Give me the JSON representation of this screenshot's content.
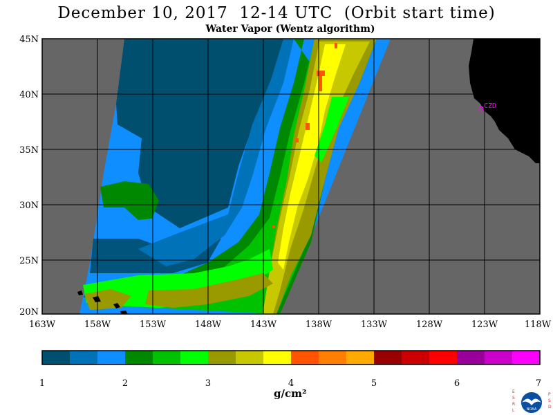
{
  "title": "December 10, 2017  12-14 UTC  (Orbit start time)",
  "subtitle": "Water Vapor (Wentz algorithm)",
  "map": {
    "lat_range": [
      20,
      45
    ],
    "lon_range": [
      -163,
      -118
    ],
    "lat_ticks": [
      "45N",
      "40N",
      "35N",
      "30N",
      "25N",
      "20N"
    ],
    "lon_ticks": [
      "163W",
      "158W",
      "153W",
      "148W",
      "143W",
      "138W",
      "133W",
      "128W",
      "123W",
      "118W"
    ],
    "station_label": "CZD",
    "colors": {
      "nodata": "#666666",
      "land": "#000000",
      "station": "#ff00ff"
    }
  },
  "colorbar": {
    "ticks": [
      "1",
      "2",
      "3",
      "4",
      "5",
      "6",
      "7"
    ],
    "unit": "g/cm²",
    "colors": [
      "#004f6f",
      "#0072b8",
      "#0f8eff",
      "#008800",
      "#00c200",
      "#00ff00",
      "#999900",
      "#c8c800",
      "#ffff00",
      "#ff5500",
      "#ff8000",
      "#ffaa00",
      "#990000",
      "#cc0000",
      "#ff0000",
      "#990099",
      "#cc00cc",
      "#ff00ff"
    ]
  },
  "logo": {
    "left_text": "ESRL",
    "right_text": "PSD",
    "center": "NOAA"
  }
}
